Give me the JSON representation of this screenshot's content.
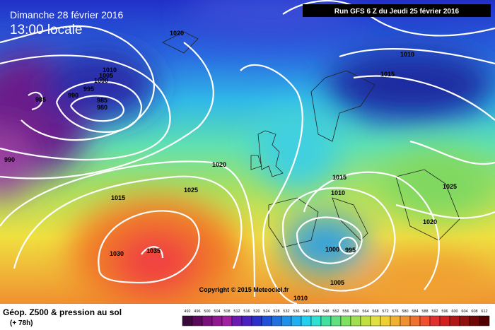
{
  "header": {
    "date": "Dimanche 28 février 2016",
    "time": "13:00 locale",
    "run": "Run GFS 6 Z du Jeudi 25 février 2016"
  },
  "isobar_labels": [
    "1020",
    "1010",
    "1005",
    "1000",
    "995",
    "990",
    "985",
    "985",
    "980",
    "990",
    "1020",
    "1015",
    "1025",
    "1030",
    "1035",
    "1010",
    "1015",
    "1015",
    "1010",
    "1025",
    "1020",
    "1000",
    "995",
    "1005",
    "1010"
  ],
  "copyright": "Copyright © 2015 Meteociel.fr",
  "legend": {
    "title": "Géop. Z500 & pression au sol",
    "lead": "(+ 78h)",
    "scale": [
      492,
      496,
      500,
      504,
      508,
      512,
      516,
      520,
      524,
      528,
      532,
      536,
      540,
      544,
      548,
      552,
      556,
      560,
      564,
      568,
      572,
      576,
      580,
      584,
      588,
      592,
      596,
      600,
      604,
      608,
      612
    ]
  }
}
